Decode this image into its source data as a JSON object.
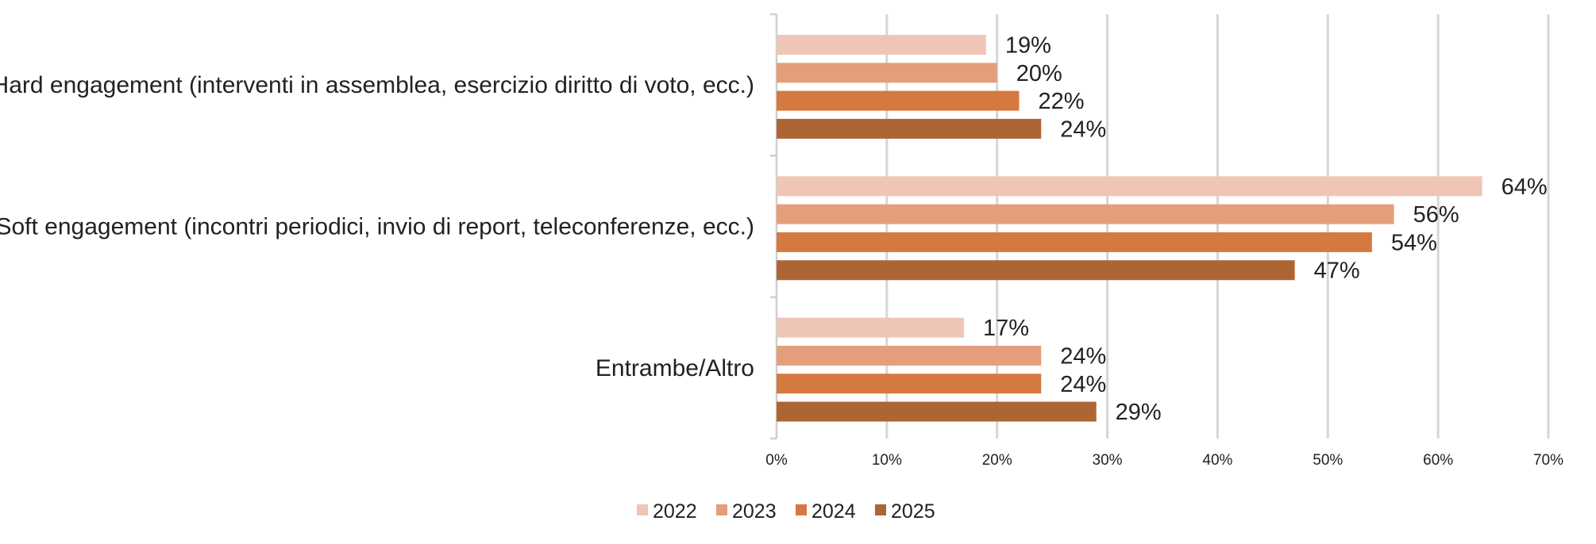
{
  "chart_data": {
    "type": "bar",
    "orientation": "horizontal",
    "categories": [
      "Hard engagement (interventi in assemblea, esercizio diritto di voto, ecc.)",
      "Soft engagement (incontri periodici, invio di report, teleconferenze, ecc.)",
      "Entrambe/Altro"
    ],
    "series": [
      {
        "name": "2022",
        "color": "#EFC6B6",
        "values": [
          19,
          64,
          17
        ]
      },
      {
        "name": "2023",
        "color": "#E59E7B",
        "values": [
          20,
          56,
          24
        ]
      },
      {
        "name": "2024",
        "color": "#D47A40",
        "values": [
          22,
          54,
          24
        ]
      },
      {
        "name": "2025",
        "color": "#AE6534",
        "values": [
          24,
          47,
          29
        ]
      }
    ],
    "data_labels": [
      [
        "19%",
        "64%",
        "17%"
      ],
      [
        "20%",
        "56%",
        "24%"
      ],
      [
        "22%",
        "54%",
        "24%"
      ],
      [
        "24%",
        "47%",
        "29%"
      ]
    ],
    "xlim": [
      0,
      70
    ],
    "xticks": [
      0,
      10,
      20,
      30,
      40,
      50,
      60,
      70
    ],
    "xtick_labels": [
      "0%",
      "10%",
      "20%",
      "30%",
      "40%",
      "50%",
      "60%",
      "70%"
    ],
    "grid": true,
    "legend": "bottom",
    "title": "",
    "xlabel": "",
    "ylabel": ""
  }
}
